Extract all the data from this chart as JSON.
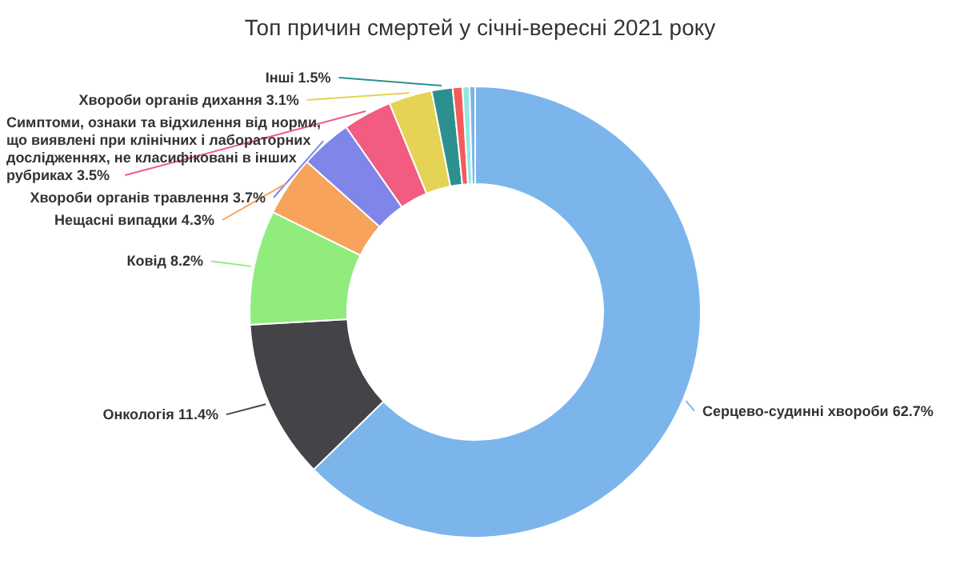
{
  "chart_data": {
    "type": "donut",
    "title": "Топ причин смертей у січні-вересні 2021 року",
    "categories": [
      "Серцево-судинні хвороби",
      "Онкологія",
      "Ковід",
      "Нещасні випадки",
      "Хвороби органів травлення",
      "Симптоми, ознаки та відхилення від норми, що виявлені при клінічних і лабораторних дослідженнях, не класифіковані в інших рубриках",
      "Хвороби органів дихання",
      "Інші",
      null,
      null,
      null
    ],
    "values": [
      62.7,
      11.4,
      8.2,
      4.3,
      3.7,
      3.5,
      3.1,
      1.5,
      0.7,
      0.5,
      0.4
    ],
    "value_labels": [
      "62.7%",
      "11.4%",
      "8.2%",
      "4.3%",
      "3.7%",
      "3.5%",
      "3.1%",
      "1.5%",
      null,
      null,
      null
    ],
    "colors": [
      "#7cb5ec",
      "#434348",
      "#90ed7d",
      "#f7a35c",
      "#8085e9",
      "#f15c80",
      "#e4d354",
      "#2b908f",
      "#f45b5b",
      "#91e8e1",
      "#7cb5ec"
    ]
  }
}
